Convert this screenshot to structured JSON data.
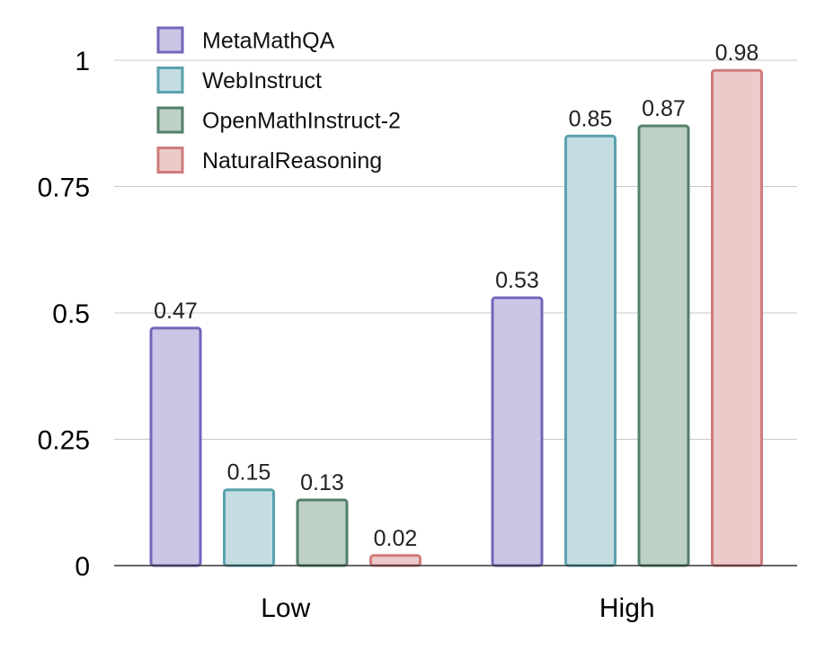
{
  "chart_data": {
    "type": "bar",
    "title": "",
    "xlabel": "",
    "ylabel": "",
    "categories": [
      "Low",
      "High"
    ],
    "ylim": [
      0,
      1.0
    ],
    "yticks": [
      0,
      0.25,
      0.5,
      0.75,
      1
    ],
    "ytick_labels": [
      "0",
      "0.25",
      "0.5",
      "0.75",
      "1"
    ],
    "grid": true,
    "legend_position": "top-left",
    "series": [
      {
        "name": "MetaMathQA",
        "values": [
          0.47,
          0.53
        ],
        "labels": [
          "0.47",
          "0.53"
        ],
        "fill": "#cbc6e6",
        "stroke": "#7565bb"
      },
      {
        "name": "WebInstruct",
        "values": [
          0.15,
          0.85
        ],
        "labels": [
          "0.15",
          "0.85"
        ],
        "fill": "#c3dde2",
        "stroke": "#5aa2ae"
      },
      {
        "name": "OpenMathInstruct-2",
        "values": [
          0.13,
          0.87
        ],
        "labels": [
          "0.13",
          "0.87"
        ],
        "fill": "#bdd1c6",
        "stroke": "#53806a"
      },
      {
        "name": "NaturalReasoning",
        "values": [
          0.02,
          0.98
        ],
        "labels": [
          "0.02",
          "0.98"
        ],
        "fill": "#ebcaca",
        "stroke": "#d07b7b"
      }
    ]
  }
}
